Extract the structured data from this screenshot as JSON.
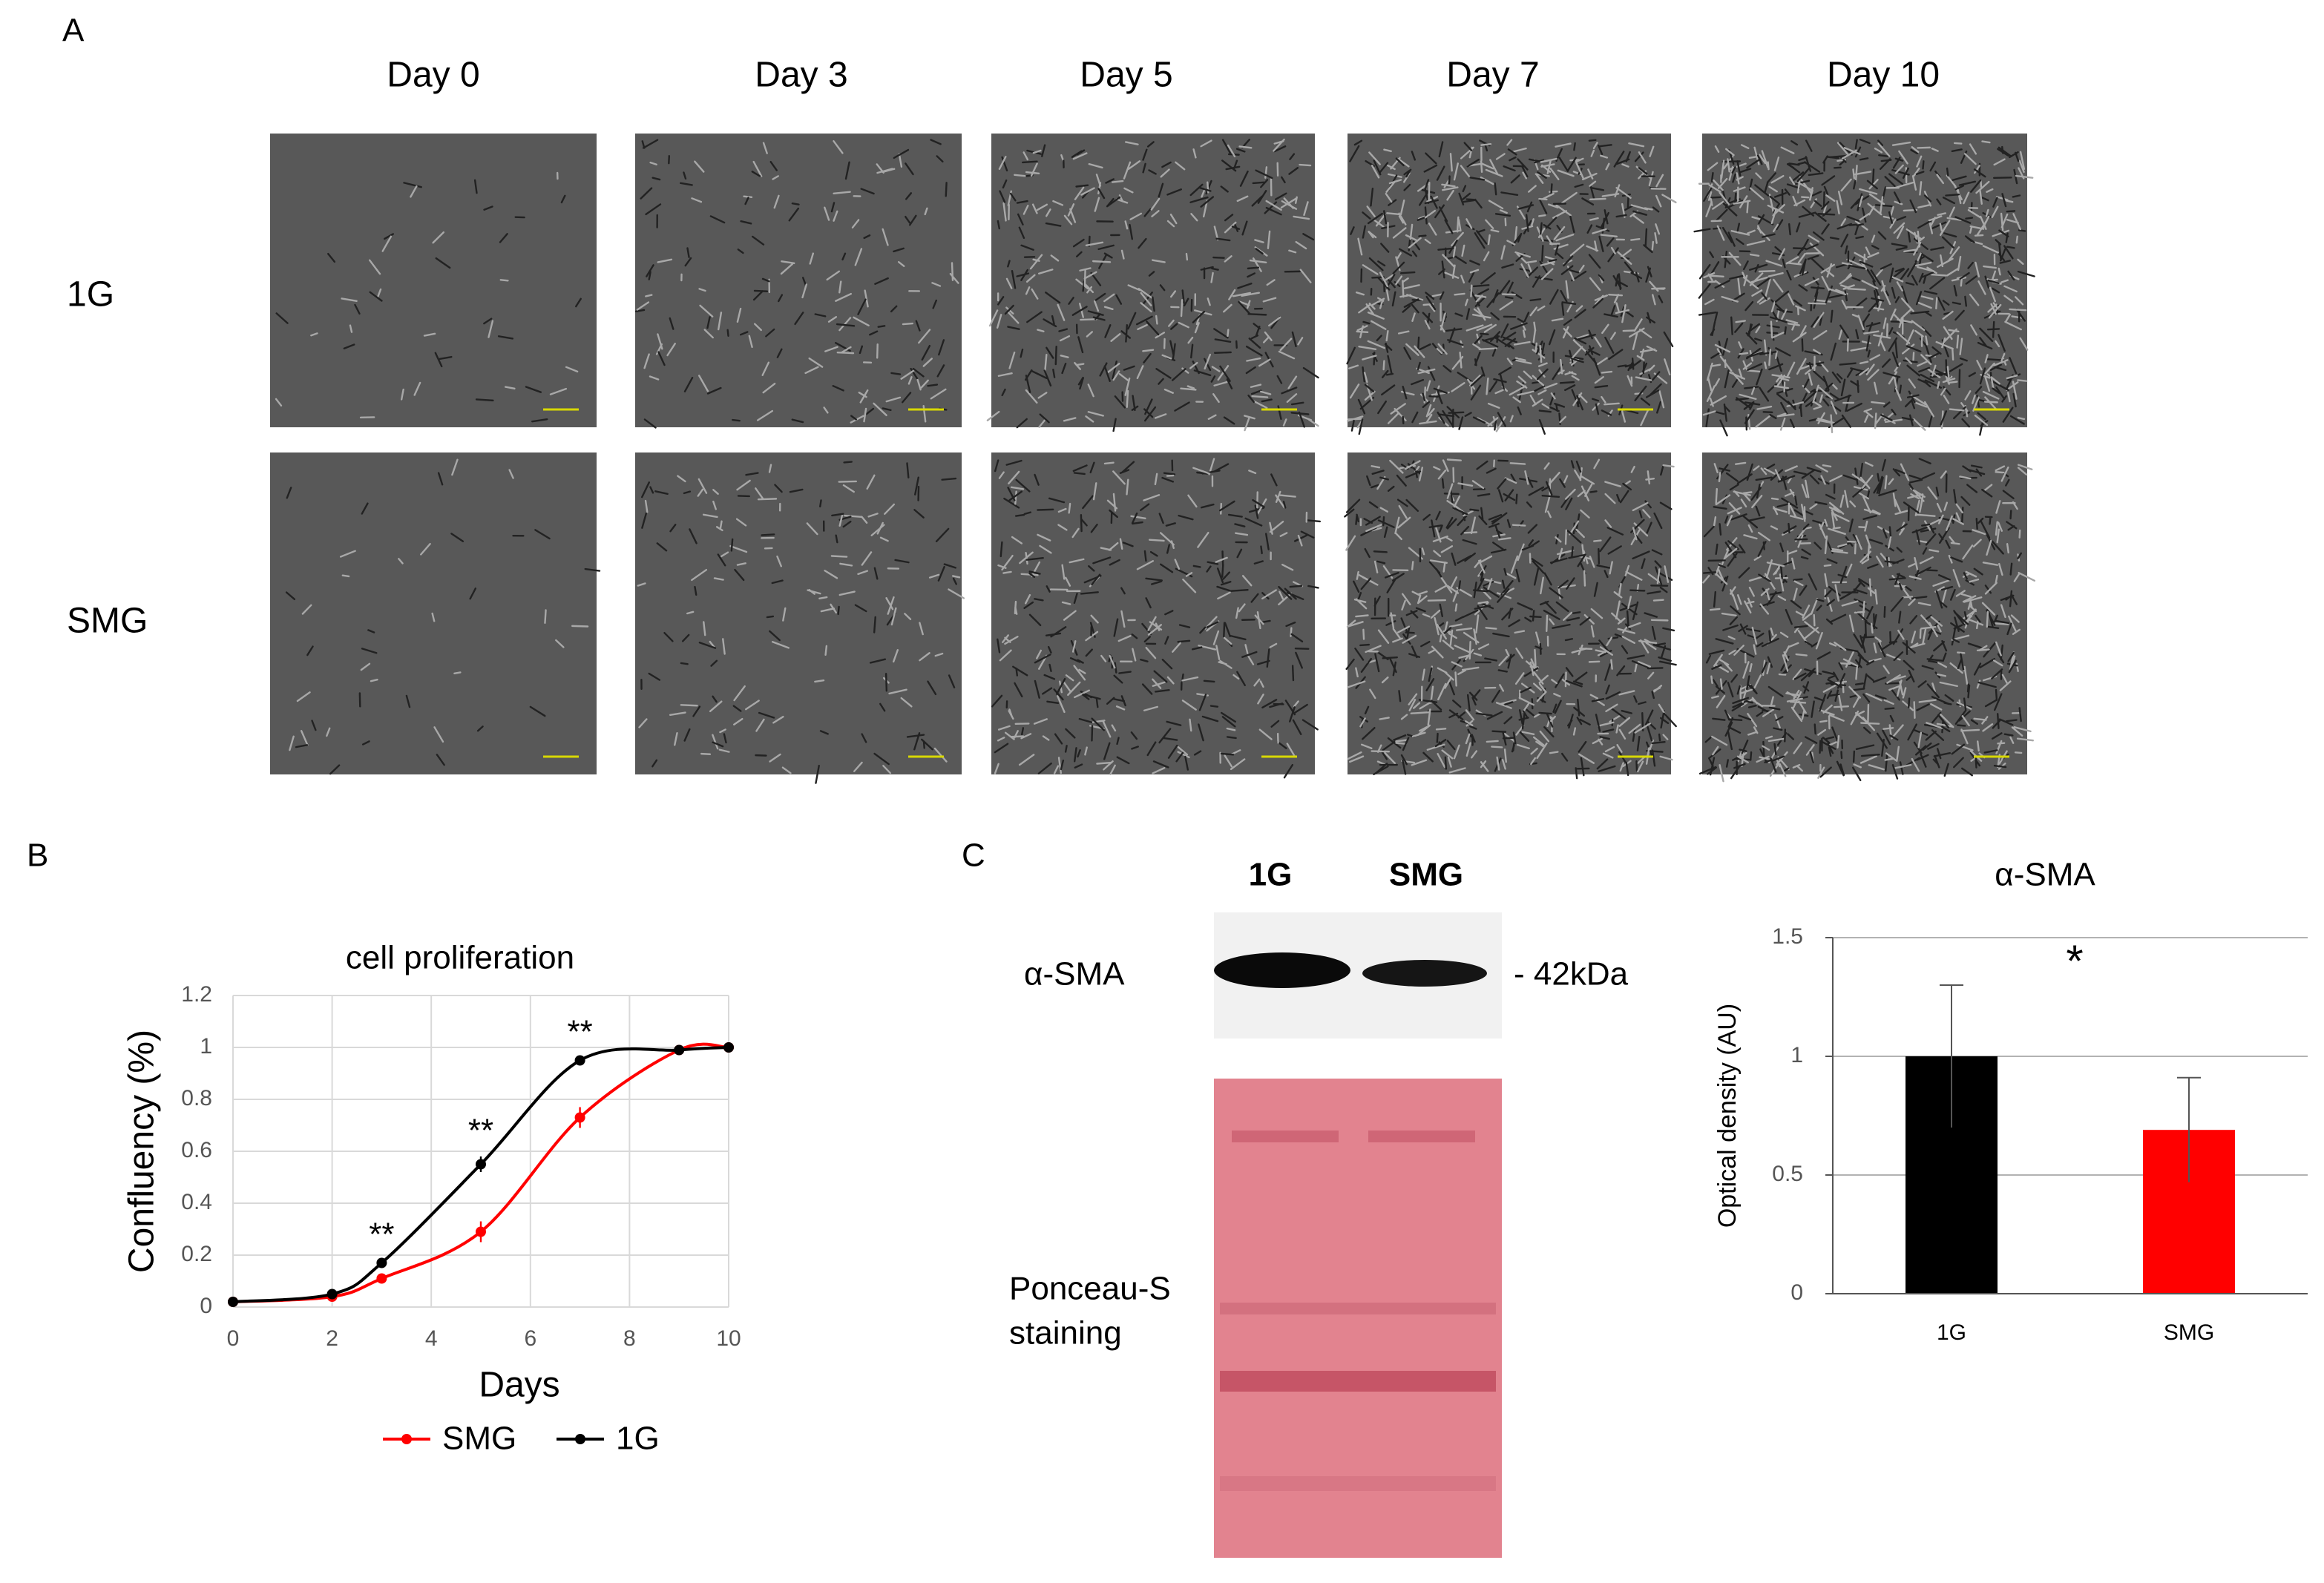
{
  "panel_labels": [
    "A",
    "B",
    "C"
  ],
  "panel_a": {
    "columns": [
      "Day 0",
      "Day 3",
      "Day 5",
      "Day 7",
      "Day 10"
    ],
    "rows": [
      "1G",
      "SMG"
    ]
  },
  "blot": {
    "lanes": [
      "1G",
      "SMG"
    ],
    "band_label": "α-SMA",
    "size_label": "- 42kDa",
    "stain_label": [
      "Ponceau-S",
      "staining"
    ]
  },
  "chart_data": [
    {
      "type": "line",
      "title": "cell proliferation",
      "x_label": "Days",
      "y_label": "Confluency (%)",
      "xlim": [
        0,
        10
      ],
      "xticks": [
        0,
        2,
        4,
        6,
        8,
        10
      ],
      "ylim": [
        0,
        1.2
      ],
      "yticks": [
        0,
        0.2,
        0.4,
        0.6,
        0.8,
        1,
        1.2
      ],
      "grid": true,
      "x": [
        0,
        2,
        3,
        5,
        7,
        9,
        10
      ],
      "series": [
        {
          "name": "SMG",
          "color": "#ff0000",
          "values": [
            0.02,
            0.04,
            0.11,
            0.29,
            0.73,
            0.99,
            1.0
          ],
          "errors": [
            0,
            0,
            0.01,
            0.04,
            0.04,
            0.01,
            0
          ]
        },
        {
          "name": "1G",
          "color": "#000000",
          "values": [
            0.02,
            0.05,
            0.17,
            0.55,
            0.95,
            0.99,
            1.0
          ],
          "errors": [
            0,
            0,
            0.01,
            0.03,
            0.01,
            0.01,
            0
          ]
        }
      ],
      "annotations": [
        {
          "text": "**",
          "x": 3
        },
        {
          "text": "**",
          "x": 5
        },
        {
          "text": "**",
          "x": 7
        }
      ]
    },
    {
      "type": "bar",
      "title": "α-SMA",
      "y_label": "Optical density (AU)",
      "categories": [
        "1G",
        "SMG"
      ],
      "values": [
        1.0,
        0.69
      ],
      "errors": [
        0.3,
        0.22
      ],
      "colors": [
        "#000000",
        "#ff0000"
      ],
      "ylim": [
        0,
        1.5
      ],
      "yticks": [
        0,
        0.5,
        1,
        1.5
      ],
      "grid": true,
      "annotations": [
        {
          "text": "*"
        }
      ]
    }
  ]
}
